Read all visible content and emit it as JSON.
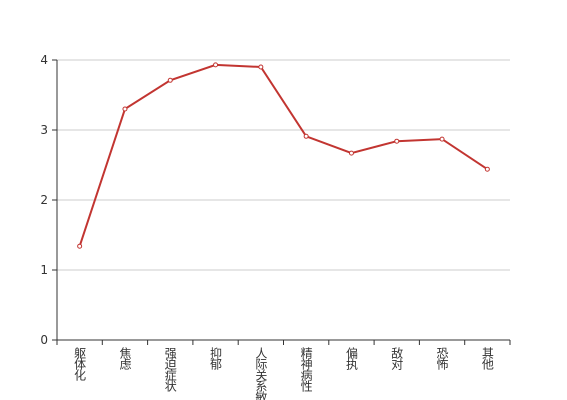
{
  "chart_data": {
    "type": "line",
    "categories": [
      "躯体化",
      "焦虑",
      "强迫症状",
      "抑郁",
      "人际关系敏感",
      "精神病性",
      "偏执",
      "敌对",
      "恐怖",
      "其他"
    ],
    "values": [
      1.34,
      3.3,
      3.71,
      3.93,
      3.9,
      2.91,
      2.67,
      2.84,
      2.87,
      2.44
    ],
    "color": "#c23531",
    "ylim": [
      0,
      4
    ],
    "yticks": [
      0,
      1,
      2,
      3,
      4
    ],
    "grid": true
  }
}
